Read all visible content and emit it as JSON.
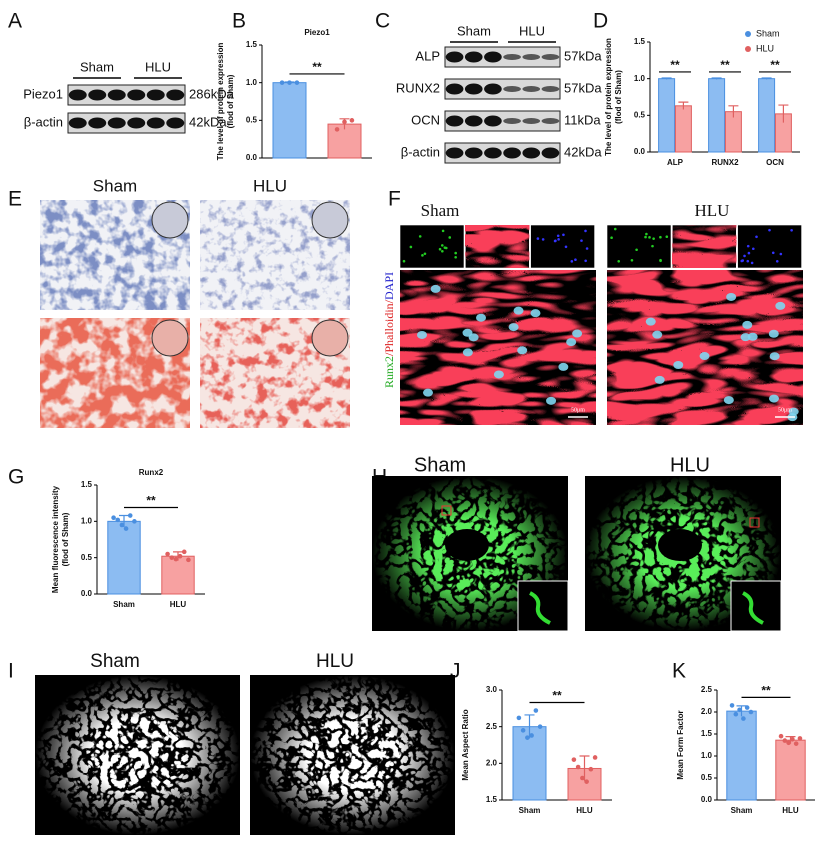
{
  "panels": {
    "letters": [
      "A",
      "B",
      "C",
      "D",
      "E",
      "F",
      "G",
      "H",
      "I",
      "J",
      "K"
    ],
    "A": {
      "groups": [
        "Sham",
        "HLU"
      ],
      "rows": [
        "Piezo1",
        "β-actin"
      ],
      "sizes": [
        "286kDa",
        "42kDa"
      ]
    },
    "C": {
      "groups": [
        "Sham",
        "HLU"
      ],
      "rows": [
        "ALP",
        "RUNX2",
        "OCN",
        "β-actin"
      ],
      "sizes": [
        "57kDa",
        "57kDa",
        "11kDa",
        "42kDa"
      ]
    },
    "E": {
      "groups": [
        "Sham",
        "HLU"
      ]
    },
    "F": {
      "groups": [
        "Sham",
        "HLU"
      ],
      "stain": [
        "Runx2",
        "/Phalloidin/",
        "DAPI"
      ],
      "scale": [
        "50μm",
        "50μm"
      ]
    },
    "H": {
      "groups": [
        "Sham",
        "HLU"
      ]
    },
    "I": {
      "groups": [
        "Sham",
        "HLU"
      ]
    }
  },
  "chart_data": [
    {
      "type": "bar",
      "title": "Piezo1",
      "y_label": [
        "The level of protein expression",
        "(flod of Sham)"
      ],
      "categories": [
        null,
        null
      ],
      "values": [
        1.0,
        0.45
      ],
      "errors": [
        0.01,
        0.07
      ],
      "points": [
        [
          1.0,
          1.0,
          1.0
        ],
        [
          0.38,
          0.48,
          0.5
        ]
      ],
      "colors": [
        "#8cbcf2",
        "#f7a1a1"
      ],
      "edge_colors": [
        "#4a8fe0",
        "#e06060"
      ],
      "ylim": [
        0,
        1.5
      ],
      "yticks": [
        {
          "value": 0,
          "label": "0.0"
        },
        0.5,
        {
          "value": 1,
          "label": "1.0"
        },
        1.5
      ],
      "annotations": [
        "**"
      ]
    },
    {
      "type": "grouped_bar",
      "y_label": [
        "The level of protein expression",
        "(flod of Sham)"
      ],
      "categories": [
        "ALP",
        "RUNX2",
        "OCN"
      ],
      "series": [
        {
          "name": "Sham",
          "color": "#8cbcf2",
          "edge_color": "#4a8fe0",
          "values": [
            1.0,
            1.0,
            1.0
          ],
          "errors": [
            0.01,
            0.01,
            0.01
          ]
        },
        {
          "name": "HLU",
          "color": "#f7a1a1",
          "edge_color": "#e06060",
          "values": [
            0.63,
            0.55,
            0.52
          ],
          "errors": [
            0.05,
            0.08,
            0.12
          ]
        }
      ],
      "ylim": [
        0,
        1.5
      ],
      "yticks": [
        {
          "value": 0,
          "label": "0.0"
        },
        0.5,
        {
          "value": 1,
          "label": "1.0"
        },
        1.5
      ],
      "legend": "upper right",
      "annotations": [
        "**",
        "**",
        "**"
      ]
    },
    {
      "type": "bar",
      "title": "Runx2",
      "y_label": [
        "Mean fluorescence intensity",
        "(flod of Sham)"
      ],
      "categories": [
        "Sham",
        "HLU"
      ],
      "values": [
        1.0,
        0.52
      ],
      "errors": [
        0.08,
        0.06
      ],
      "points": [
        [
          1.05,
          1.02,
          0.95,
          0.9,
          1.08,
          1.0
        ],
        [
          0.55,
          0.5,
          0.48,
          0.52,
          0.58,
          0.47
        ]
      ],
      "colors": [
        "#8cbcf2",
        "#f7a1a1"
      ],
      "edge_colors": [
        "#4a8fe0",
        "#e06060"
      ],
      "ylim": [
        0,
        1.5
      ],
      "yticks": [
        {
          "value": 0,
          "label": "0.0"
        },
        0.5,
        {
          "value": 1,
          "label": "1.0"
        },
        1.5
      ],
      "annotations": [
        "**"
      ]
    },
    {
      "type": "bar",
      "y_label": [
        "Mean Aspect Ratio"
      ],
      "categories": [
        "Sham",
        "HLU"
      ],
      "values": [
        2.5,
        1.93
      ],
      "errors": [
        0.16,
        0.17
      ],
      "points": [
        [
          2.62,
          2.45,
          2.35,
          2.38,
          2.72,
          2.5
        ],
        [
          2.05,
          1.95,
          1.8,
          1.75,
          1.92,
          2.08
        ]
      ],
      "colors": [
        "#8cbcf2",
        "#f7a1a1"
      ],
      "edge_colors": [
        "#4a8fe0",
        "#e06060"
      ],
      "ylim": [
        1.5,
        3.0
      ],
      "yticks": [
        1.5,
        {
          "value": 2,
          "label": "2.0"
        },
        2.5,
        {
          "value": 3,
          "label": "3.0"
        }
      ],
      "annotations": [
        "**"
      ]
    },
    {
      "type": "bar",
      "y_label": [
        "Mean Form Factor"
      ],
      "categories": [
        "Sham",
        "HLU"
      ],
      "values": [
        2.02,
        1.36
      ],
      "errors": [
        0.12,
        0.08
      ],
      "points": [
        [
          2.15,
          1.95,
          2.05,
          1.85,
          2.1,
          2.0
        ],
        [
          1.45,
          1.35,
          1.3,
          1.38,
          1.28,
          1.4
        ]
      ],
      "colors": [
        "#8cbcf2",
        "#f7a1a1"
      ],
      "edge_colors": [
        "#4a8fe0",
        "#e06060"
      ],
      "ylim": [
        0,
        2.5
      ],
      "yticks": [
        {
          "value": 0,
          "label": "0.0"
        },
        0.5,
        {
          "value": 1,
          "label": "1.0"
        },
        1.5,
        {
          "value": 2,
          "label": "2.0"
        },
        2.5
      ],
      "annotations": [
        "**"
      ]
    }
  ]
}
